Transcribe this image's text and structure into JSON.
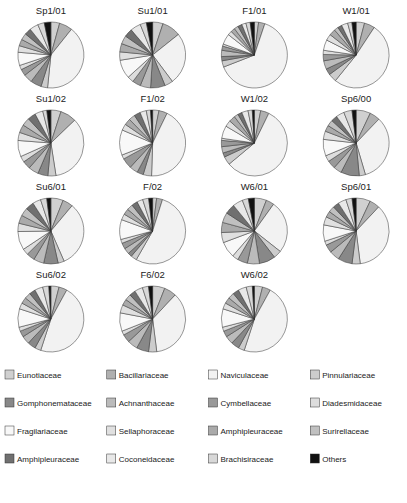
{
  "chart_data": [
    {
      "type": "pie",
      "title": "Sp1/01",
      "categories": [
        "Eunotiaceae",
        "Bacillariaceae",
        "Naviculaceae",
        "Pinnulariaceae",
        "Gomphonemataceae",
        "Achnanthaceae",
        "Cymbellaceae",
        "Diadesmidaceae",
        "Fragilariaceae",
        "Sellaphoraceae",
        "Amphipleuraceae",
        "Surirellaceae",
        "Amphipleuraceae",
        "Coconeidaceae",
        "Brachisiraceae",
        "Others"
      ],
      "values": [
        4,
        6,
        38,
        3,
        5,
        4,
        3,
        2,
        6,
        3,
        3,
        3,
        3,
        4,
        3,
        3
      ],
      "colors": [
        "#d0d0d0",
        "#b0b0b0",
        "#f2f2f2",
        "#cccccc",
        "#888888",
        "#bbbbbb",
        "#999999",
        "#dddddd",
        "#f8f8f8",
        "#e0e0e0",
        "#aaaaaa",
        "#c0c0c0",
        "#707070",
        "#e8e8e8",
        "#d8d8d8",
        "#111111"
      ]
    },
    {
      "type": "pie",
      "title": "Su1/01",
      "categories": [
        "Eunotiaceae",
        "Bacillariaceae",
        "Naviculaceae",
        "Pinnulariaceae",
        "Gomphonemataceae",
        "Achnanthaceae",
        "Cymbellaceae",
        "Diadesmidaceae",
        "Fragilariaceae",
        "Sellaphoraceae",
        "Amphipleuraceae",
        "Surirellaceae",
        "Amphipleuraceae",
        "Coconeidaceae",
        "Brachisiraceae",
        "Others"
      ],
      "values": [
        5,
        9,
        25,
        4,
        7,
        5,
        4,
        3,
        9,
        4,
        4,
        4,
        4,
        5,
        3,
        3
      ],
      "colors": [
        "#d0d0d0",
        "#b0b0b0",
        "#f2f2f2",
        "#cccccc",
        "#888888",
        "#bbbbbb",
        "#999999",
        "#dddddd",
        "#f8f8f8",
        "#e0e0e0",
        "#aaaaaa",
        "#c0c0c0",
        "#707070",
        "#e8e8e8",
        "#d8d8d8",
        "#111111"
      ]
    },
    {
      "type": "pie",
      "title": "F1/01",
      "categories": [
        "Eunotiaceae",
        "Bacillariaceae",
        "Naviculaceae",
        "Pinnulariaceae",
        "Gomphonemataceae",
        "Achnanthaceae",
        "Cymbellaceae",
        "Diadesmidaceae",
        "Fragilariaceae",
        "Sellaphoraceae",
        "Amphipleuraceae",
        "Surirellaceae",
        "Amphipleuraceae",
        "Coconeidaceae",
        "Brachisiraceae",
        "Others"
      ],
      "values": [
        2,
        3,
        62,
        3,
        2,
        3,
        2,
        1,
        5,
        2,
        2,
        2,
        2,
        2,
        2,
        2
      ],
      "colors": [
        "#d0d0d0",
        "#b0b0b0",
        "#f2f2f2",
        "#cccccc",
        "#888888",
        "#bbbbbb",
        "#999999",
        "#dddddd",
        "#f8f8f8",
        "#e0e0e0",
        "#aaaaaa",
        "#c0c0c0",
        "#707070",
        "#e8e8e8",
        "#d8d8d8",
        "#111111"
      ]
    },
    {
      "type": "pie",
      "title": "W1/01",
      "categories": [
        "Eunotiaceae",
        "Bacillariaceae",
        "Naviculaceae",
        "Pinnulariaceae",
        "Gomphonemataceae",
        "Achnanthaceae",
        "Cymbellaceae",
        "Diadesmidaceae",
        "Fragilariaceae",
        "Sellaphoraceae",
        "Amphipleuraceae",
        "Surirellaceae",
        "Amphipleuraceae",
        "Coconeidaceae",
        "Brachisiraceae",
        "Others"
      ],
      "values": [
        4,
        5,
        50,
        4,
        3,
        4,
        3,
        2,
        5,
        3,
        3,
        2,
        2,
        3,
        2,
        2
      ],
      "colors": [
        "#d0d0d0",
        "#b0b0b0",
        "#f2f2f2",
        "#cccccc",
        "#888888",
        "#bbbbbb",
        "#999999",
        "#dddddd",
        "#f8f8f8",
        "#e0e0e0",
        "#aaaaaa",
        "#c0c0c0",
        "#707070",
        "#e8e8e8",
        "#d8d8d8",
        "#111111"
      ]
    },
    {
      "type": "pie",
      "title": "Su1/02",
      "categories": [
        "Eunotiaceae",
        "Bacillariaceae",
        "Naviculaceae",
        "Pinnulariaceae",
        "Gomphonemataceae",
        "Achnanthaceae",
        "Cymbellaceae",
        "Diadesmidaceae",
        "Fragilariaceae",
        "Sellaphoraceae",
        "Amphipleuraceae",
        "Surirellaceae",
        "Amphipleuraceae",
        "Coconeidaceae",
        "Brachisiraceae",
        "Others"
      ],
      "values": [
        5,
        8,
        35,
        4,
        5,
        5,
        4,
        3,
        8,
        4,
        4,
        4,
        4,
        4,
        2,
        2
      ],
      "colors": [
        "#d0d0d0",
        "#b0b0b0",
        "#f2f2f2",
        "#cccccc",
        "#888888",
        "#bbbbbb",
        "#999999",
        "#dddddd",
        "#f8f8f8",
        "#e0e0e0",
        "#aaaaaa",
        "#c0c0c0",
        "#707070",
        "#e8e8e8",
        "#d8d8d8",
        "#111111"
      ]
    },
    {
      "type": "pie",
      "title": "F1/02",
      "categories": [
        "Eunotiaceae",
        "Bacillariaceae",
        "Naviculaceae",
        "Pinnulariaceae",
        "Gomphonemataceae",
        "Achnanthaceae",
        "Cymbellaceae",
        "Diadesmidaceae",
        "Fragilariaceae",
        "Sellaphoraceae",
        "Amphipleuraceae",
        "Surirellaceae",
        "Amphipleuraceae",
        "Coconeidaceae",
        "Brachisiraceae",
        "Others"
      ],
      "values": [
        3,
        4,
        42,
        4,
        3,
        4,
        5,
        2,
        12,
        3,
        3,
        3,
        3,
        3,
        2,
        1
      ],
      "colors": [
        "#d0d0d0",
        "#b0b0b0",
        "#f2f2f2",
        "#cccccc",
        "#888888",
        "#bbbbbb",
        "#999999",
        "#dddddd",
        "#f8f8f8",
        "#e0e0e0",
        "#aaaaaa",
        "#c0c0c0",
        "#707070",
        "#e8e8e8",
        "#d8d8d8",
        "#111111"
      ]
    },
    {
      "type": "pie",
      "title": "W1/02",
      "categories": [
        "Eunotiaceae",
        "Bacillariaceae",
        "Naviculaceae",
        "Pinnulariaceae",
        "Gomphonemataceae",
        "Achnanthaceae",
        "Cymbellaceae",
        "Diadesmidaceae",
        "Fragilariaceae",
        "Sellaphoraceae",
        "Amphipleuraceae",
        "Surirellaceae",
        "Amphipleuraceae",
        "Coconeidaceae",
        "Brachisiraceae",
        "Others"
      ],
      "values": [
        3,
        4,
        55,
        4,
        2,
        3,
        3,
        1,
        6,
        3,
        3,
        2,
        2,
        3,
        2,
        1
      ],
      "colors": [
        "#d0d0d0",
        "#b0b0b0",
        "#f2f2f2",
        "#cccccc",
        "#888888",
        "#bbbbbb",
        "#999999",
        "#dddddd",
        "#f8f8f8",
        "#e0e0e0",
        "#aaaaaa",
        "#c0c0c0",
        "#707070",
        "#e8e8e8",
        "#d8d8d8",
        "#111111"
      ]
    },
    {
      "type": "pie",
      "title": "Sp6/00",
      "categories": [
        "Eunotiaceae",
        "Bacillariaceae",
        "Naviculaceae",
        "Pinnulariaceae",
        "Gomphonemataceae",
        "Achnanthaceae",
        "Cymbellaceae",
        "Diadesmidaceae",
        "Fragilariaceae",
        "Sellaphoraceae",
        "Amphipleuraceae",
        "Surirellaceae",
        "Amphipleuraceae",
        "Coconeidaceae",
        "Brachisiraceae",
        "Others"
      ],
      "values": [
        7,
        5,
        33,
        3,
        9,
        4,
        4,
        3,
        8,
        4,
        3,
        3,
        3,
        4,
        4,
        2
      ],
      "colors": [
        "#d0d0d0",
        "#b0b0b0",
        "#f2f2f2",
        "#cccccc",
        "#888888",
        "#bbbbbb",
        "#999999",
        "#dddddd",
        "#f8f8f8",
        "#e0e0e0",
        "#aaaaaa",
        "#c0c0c0",
        "#707070",
        "#e8e8e8",
        "#d8d8d8",
        "#111111"
      ]
    },
    {
      "type": "pie",
      "title": "Su6/01",
      "categories": [
        "Eunotiaceae",
        "Bacillariaceae",
        "Naviculaceae",
        "Pinnulariaceae",
        "Gomphonemataceae",
        "Achnanthaceae",
        "Cymbellaceae",
        "Diadesmidaceae",
        "Fragilariaceae",
        "Sellaphoraceae",
        "Amphipleuraceae",
        "Surirellaceae",
        "Amphipleuraceae",
        "Coconeidaceae",
        "Brachisiraceae",
        "Others"
      ],
      "values": [
        6,
        5,
        32,
        3,
        7,
        5,
        4,
        3,
        9,
        4,
        4,
        4,
        4,
        4,
        3,
        2
      ],
      "colors": [
        "#d0d0d0",
        "#b0b0b0",
        "#f2f2f2",
        "#cccccc",
        "#888888",
        "#bbbbbb",
        "#999999",
        "#dddddd",
        "#f8f8f8",
        "#e0e0e0",
        "#aaaaaa",
        "#c0c0c0",
        "#707070",
        "#e8e8e8",
        "#d8d8d8",
        "#111111"
      ]
    },
    {
      "type": "pie",
      "title": "F/02",
      "categories": [
        "Eunotiaceae",
        "Bacillariaceae",
        "Naviculaceae",
        "Pinnulariaceae",
        "Gomphonemataceae",
        "Achnanthaceae",
        "Cymbellaceae",
        "Diadesmidaceae",
        "Fragilariaceae",
        "Sellaphoraceae",
        "Amphipleuraceae",
        "Surirellaceae",
        "Amphipleuraceae",
        "Coconeidaceae",
        "Brachisiraceae",
        "Others"
      ],
      "values": [
        2,
        3,
        55,
        3,
        2,
        3,
        3,
        2,
        10,
        3,
        3,
        3,
        3,
        3,
        3,
        2
      ],
      "colors": [
        "#d0d0d0",
        "#b0b0b0",
        "#f2f2f2",
        "#cccccc",
        "#888888",
        "#bbbbbb",
        "#999999",
        "#dddddd",
        "#f8f8f8",
        "#e0e0e0",
        "#aaaaaa",
        "#c0c0c0",
        "#707070",
        "#e8e8e8",
        "#d8d8d8",
        "#111111"
      ]
    },
    {
      "type": "pie",
      "title": "W6/01",
      "categories": [
        "Eunotiaceae",
        "Bacillariaceae",
        "Naviculaceae",
        "Pinnulariaceae",
        "Gomphonemataceae",
        "Achnanthaceae",
        "Cymbellaceae",
        "Diadesmidaceae",
        "Fragilariaceae",
        "Sellaphoraceae",
        "Amphipleuraceae",
        "Surirellaceae",
        "Amphipleuraceae",
        "Coconeidaceae",
        "Brachisiraceae",
        "Others"
      ],
      "values": [
        6,
        4,
        26,
        4,
        8,
        6,
        5,
        3,
        8,
        5,
        5,
        5,
        5,
        5,
        3,
        3
      ],
      "colors": [
        "#d0d0d0",
        "#b0b0b0",
        "#f2f2f2",
        "#cccccc",
        "#888888",
        "#bbbbbb",
        "#999999",
        "#dddddd",
        "#f8f8f8",
        "#e0e0e0",
        "#aaaaaa",
        "#c0c0c0",
        "#707070",
        "#e8e8e8",
        "#d8d8d8",
        "#111111"
      ]
    },
    {
      "type": "pie",
      "title": "Sp6/01",
      "categories": [
        "Eunotiaceae",
        "Bacillariaceae",
        "Naviculaceae",
        "Pinnulariaceae",
        "Gomphonemataceae",
        "Achnanthaceae",
        "Cymbellaceae",
        "Diadesmidaceae",
        "Fragilariaceae",
        "Sellaphoraceae",
        "Amphipleuraceae",
        "Surirellaceae",
        "Amphipleuraceae",
        "Coconeidaceae",
        "Brachisiraceae",
        "Others"
      ],
      "values": [
        7,
        5,
        36,
        4,
        7,
        5,
        4,
        2,
        8,
        4,
        3,
        3,
        3,
        4,
        3,
        2
      ],
      "colors": [
        "#d0d0d0",
        "#b0b0b0",
        "#f2f2f2",
        "#cccccc",
        "#888888",
        "#bbbbbb",
        "#999999",
        "#dddddd",
        "#f8f8f8",
        "#e0e0e0",
        "#aaaaaa",
        "#c0c0c0",
        "#707070",
        "#e8e8e8",
        "#d8d8d8",
        "#111111"
      ]
    },
    {
      "type": "pie",
      "title": "Su6/02",
      "categories": [
        "Eunotiaceae",
        "Bacillariaceae",
        "Naviculaceae",
        "Pinnulariaceae",
        "Gomphonemataceae",
        "Achnanthaceae",
        "Cymbellaceae",
        "Diadesmidaceae",
        "Fragilariaceae",
        "Sellaphoraceae",
        "Amphipleuraceae",
        "Surirellaceae",
        "Amphipleuraceae",
        "Coconeidaceae",
        "Brachisiraceae",
        "Others"
      ],
      "values": [
        4,
        4,
        47,
        3,
        4,
        4,
        3,
        2,
        9,
        3,
        3,
        3,
        3,
        4,
        3,
        1
      ],
      "colors": [
        "#d0d0d0",
        "#b0b0b0",
        "#f2f2f2",
        "#cccccc",
        "#888888",
        "#bbbbbb",
        "#999999",
        "#dddddd",
        "#f8f8f8",
        "#e0e0e0",
        "#aaaaaa",
        "#c0c0c0",
        "#707070",
        "#e8e8e8",
        "#d8d8d8",
        "#111111"
      ]
    },
    {
      "type": "pie",
      "title": "F6/02",
      "categories": [
        "Eunotiaceae",
        "Bacillariaceae",
        "Naviculaceae",
        "Pinnulariaceae",
        "Gomphonemataceae",
        "Achnanthaceae",
        "Cymbellaceae",
        "Diadesmidaceae",
        "Fragilariaceae",
        "Sellaphoraceae",
        "Amphipleuraceae",
        "Surirellaceae",
        "Amphipleuraceae",
        "Coconeidaceae",
        "Brachisiraceae",
        "Others"
      ],
      "values": [
        6,
        6,
        36,
        4,
        6,
        5,
        4,
        2,
        9,
        4,
        3,
        3,
        3,
        4,
        3,
        2
      ],
      "colors": [
        "#d0d0d0",
        "#b0b0b0",
        "#f2f2f2",
        "#cccccc",
        "#888888",
        "#bbbbbb",
        "#999999",
        "#dddddd",
        "#f8f8f8",
        "#e0e0e0",
        "#aaaaaa",
        "#c0c0c0",
        "#707070",
        "#e8e8e8",
        "#d8d8d8",
        "#111111"
      ]
    },
    {
      "type": "pie",
      "title": "W6/02",
      "categories": [
        "Eunotiaceae",
        "Bacillariaceae",
        "Naviculaceae",
        "Pinnulariaceae",
        "Gomphonemataceae",
        "Achnanthaceae",
        "Cymbellaceae",
        "Diadesmidaceae",
        "Fragilariaceae",
        "Sellaphoraceae",
        "Amphipleuraceae",
        "Surirellaceae",
        "Amphipleuraceae",
        "Coconeidaceae",
        "Brachisiraceae",
        "Others"
      ],
      "values": [
        4,
        4,
        47,
        3,
        4,
        4,
        3,
        2,
        9,
        3,
        3,
        3,
        3,
        4,
        3,
        1
      ],
      "colors": [
        "#d0d0d0",
        "#b0b0b0",
        "#f2f2f2",
        "#cccccc",
        "#888888",
        "#bbbbbb",
        "#999999",
        "#dddddd",
        "#f8f8f8",
        "#e0e0e0",
        "#aaaaaa",
        "#c0c0c0",
        "#707070",
        "#e8e8e8",
        "#d8d8d8",
        "#111111"
      ]
    }
  ]
}
